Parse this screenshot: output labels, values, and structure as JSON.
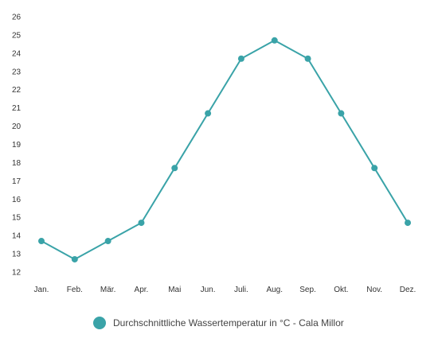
{
  "chart_data": {
    "type": "line",
    "categories": [
      "Jan.",
      "Feb.",
      "Mär.",
      "Apr.",
      "Mai",
      "Jun.",
      "Juli.",
      "Aug.",
      "Sep.",
      "Okt.",
      "Nov.",
      "Dez."
    ],
    "series": [
      {
        "name": "Durchschnittliche Wassertemperatur in °C - Cala Millor",
        "values": [
          13.7,
          12.7,
          13.7,
          14.7,
          17.7,
          20.7,
          23.7,
          24.7,
          23.7,
          20.7,
          17.7,
          14.7
        ],
        "color": "#3aa3a8"
      }
    ],
    "yticks": [
      12,
      13,
      14,
      15,
      16,
      17,
      18,
      19,
      20,
      21,
      22,
      23,
      24,
      25,
      26
    ],
    "ylim": [
      12,
      26
    ],
    "grid": false,
    "legend_position": "bottom",
    "title": "",
    "xlabel": "",
    "ylabel": ""
  }
}
